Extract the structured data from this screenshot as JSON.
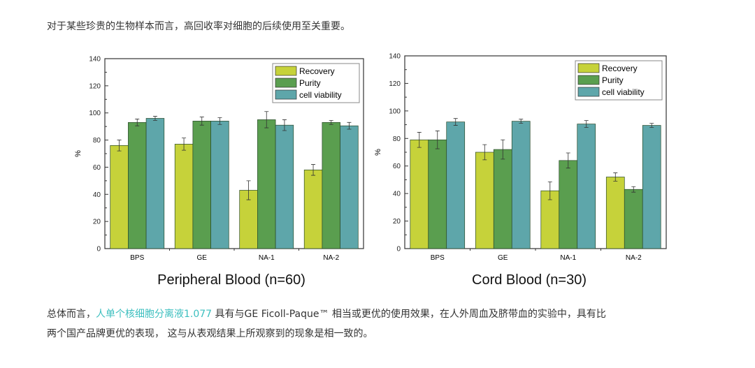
{
  "intro": "对于某些珍贵的生物样本而言，高回收率对细胞的后续使用至关重要。",
  "conclusion": {
    "prefix": "总体而言，",
    "link": "人单个核细胞分离液1.077",
    "line1_rest": " 具有与GE Ficoll-Paque™ 相当或更优的使用效果，在人外周血及脐带血的实验中，具有比",
    "line2": "两个国产品牌更优的表现， 这与从表观结果上所观察到的现象是相一致的。"
  },
  "colors": {
    "Recovery": "#c6d23a",
    "Purity": "#5a9e4f",
    "cell viability": "#5ea6aa",
    "link": "#3cbfbf"
  },
  "chart_data": [
    {
      "type": "bar",
      "title": "Peripheral Blood (n=60)",
      "ylabel": "%",
      "xlabel": "",
      "ylim": [
        0,
        140
      ],
      "yticks": [
        0,
        20,
        40,
        60,
        80,
        100,
        120,
        140
      ],
      "categories": [
        "BPS",
        "GE",
        "NA-1",
        "NA-2"
      ],
      "legend": "top-right",
      "series": [
        {
          "name": "Recovery",
          "values": [
            76,
            77,
            43,
            58
          ],
          "errors": [
            4,
            4.5,
            7,
            4
          ]
        },
        {
          "name": "Purity",
          "values": [
            93,
            94,
            95,
            93
          ],
          "errors": [
            2.5,
            3,
            6,
            1.5
          ]
        },
        {
          "name": "cell viability",
          "values": [
            96,
            94,
            91,
            90.5
          ],
          "errors": [
            1.5,
            2.5,
            4,
            2.5
          ]
        }
      ]
    },
    {
      "type": "bar",
      "title": "Cord Blood (n=30)",
      "ylabel": "%",
      "xlabel": "",
      "ylim": [
        0,
        140
      ],
      "yticks": [
        0,
        20,
        40,
        60,
        80,
        100,
        120,
        140
      ],
      "categories": [
        "BPS",
        "GE",
        "NA-1",
        "NA-2"
      ],
      "legend": "top-right",
      "series": [
        {
          "name": "Recovery",
          "values": [
            79,
            70,
            42,
            52
          ],
          "errors": [
            5.5,
            5.5,
            6.5,
            3
          ]
        },
        {
          "name": "Purity",
          "values": [
            79,
            72,
            64,
            43
          ],
          "errors": [
            6.5,
            7,
            5.5,
            2
          ]
        },
        {
          "name": "cell viability",
          "values": [
            92,
            92.5,
            90.5,
            89.5
          ],
          "errors": [
            2.5,
            1.5,
            2.5,
            1.5
          ]
        }
      ]
    }
  ]
}
